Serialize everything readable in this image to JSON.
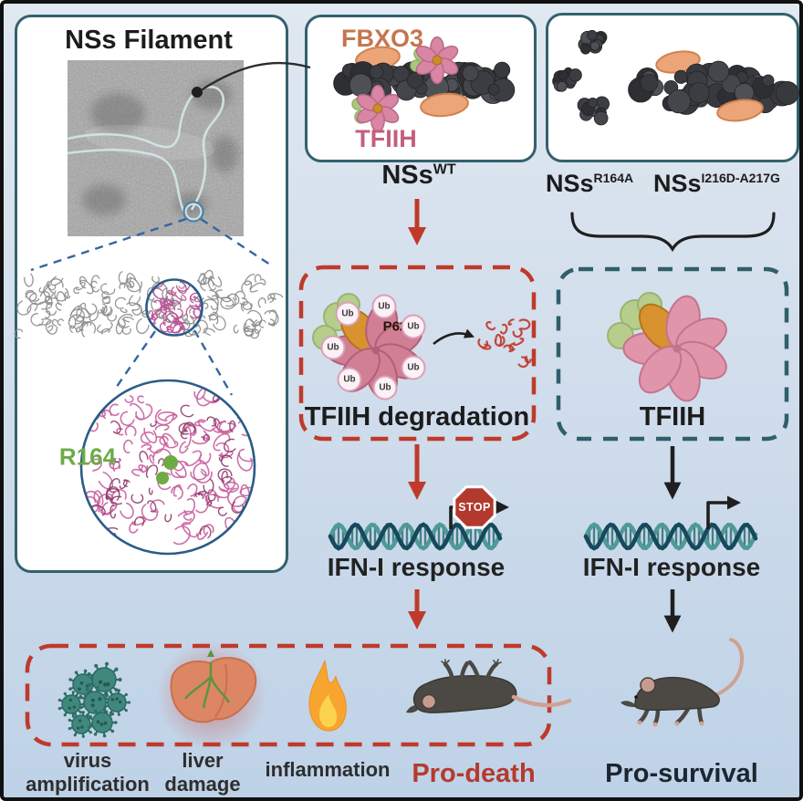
{
  "left_panel": {
    "title": "NSs Filament",
    "residue_label": "R164"
  },
  "wt_box": {
    "fbxo3_label": "FBXO3",
    "tfiih_label": "TFIIH",
    "name_base": "NSs",
    "name_sup": "WT"
  },
  "mutant_box": {
    "mut1_base": "NSs",
    "mut1_sup": "R164A",
    "mut2_base": "NSs",
    "mut2_sup": "I216D-A217G"
  },
  "degradation_box": {
    "title": "TFIIH degradation",
    "p62_label": "P62",
    "ub_label": "Ub"
  },
  "tfiih_box": {
    "title": "TFIIH"
  },
  "pathway_blocked": {
    "ifn_label": "IFN-I response",
    "stop_label": "STOP"
  },
  "pathway_active": {
    "ifn_label": "IFN-I response"
  },
  "outcomes_death": {
    "virus_line1": "virus",
    "virus_line2": "amplification",
    "liver_line1": "liver",
    "liver_line2": "damage",
    "inflammation": "inflammation",
    "label": "Pro-death"
  },
  "outcomes_survival": {
    "label": "Pro-survival"
  },
  "colors": {
    "red_accent": "#bf3a2b",
    "teal_border": "#33616c",
    "teal_dash": "#2e5f6b",
    "fbxo3_orange": "#c5754e",
    "tfiih_pink": "#c2607c",
    "residue_green": "#6cab46"
  }
}
